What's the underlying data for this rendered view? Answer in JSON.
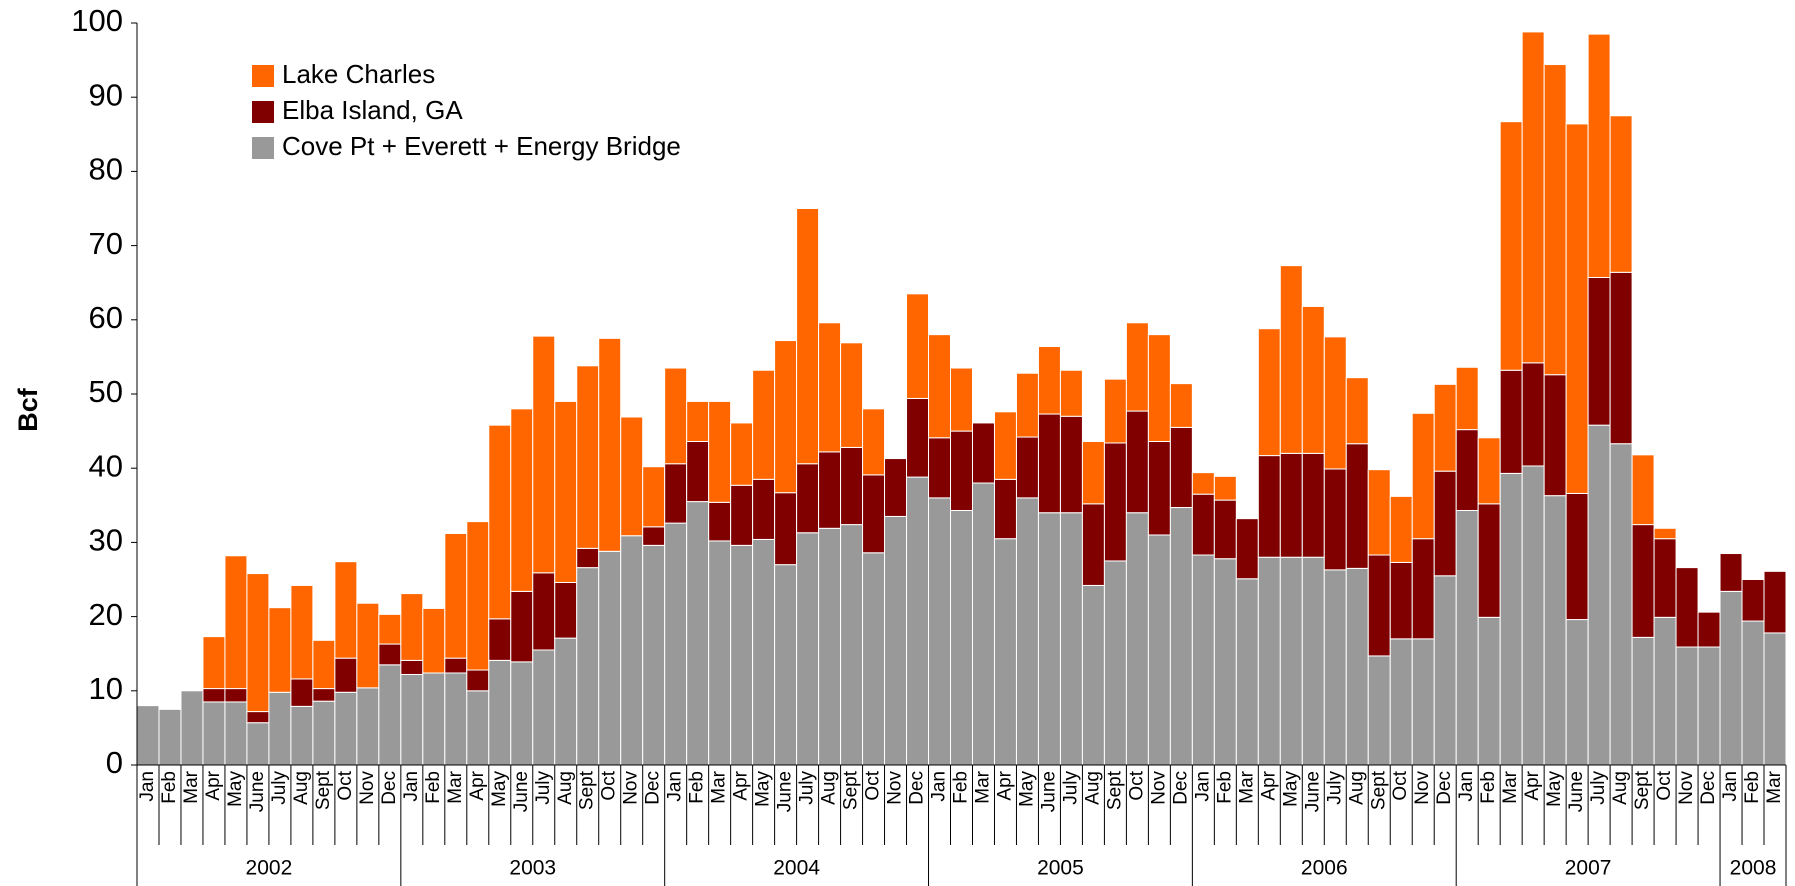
{
  "chart_data": {
    "type": "stacked_bar",
    "y_label": "Bcf",
    "categories": [
      "Jan",
      "Feb",
      "Mar",
      "Apr",
      "May",
      "June",
      "July",
      "Aug",
      "Sept",
      "Oct",
      "Nov",
      "Dec",
      "Jan",
      "Feb",
      "Mar",
      "Apr",
      "May",
      "June",
      "July",
      "Aug",
      "Sept",
      "Oct",
      "Nov",
      "Dec",
      "Jan",
      "Feb",
      "Mar",
      "Apr",
      "May",
      "June",
      "July",
      "Aug",
      "Sept",
      "Oct",
      "Nov",
      "Dec",
      "Jan",
      "Feb",
      "Mar",
      "Apr",
      "May",
      "June",
      "July",
      "Aug",
      "Sept",
      "Oct",
      "Nov",
      "Dec",
      "Jan",
      "Feb",
      "Mar",
      "Apr",
      "May",
      "June",
      "July",
      "Aug",
      "Sept",
      "Oct",
      "Nov",
      "Dec",
      "Jan",
      "Feb",
      "Mar",
      "Apr",
      "May",
      "June",
      "July",
      "Aug",
      "Sept",
      "Oct",
      "Nov",
      "Dec",
      "Jan",
      "Feb",
      "Mar"
    ],
    "years": [
      "2002",
      "2003",
      "2004",
      "2005",
      "2006",
      "2007",
      "2008"
    ],
    "series": [
      {
        "name": "Cove Pt + Everett + Energy Bridge",
        "color": "#999999",
        "values": [
          8,
          7.5,
          10,
          8.5,
          8.5,
          5.7,
          9.8,
          7.9,
          8.6,
          9.8,
          10.4,
          13.5,
          12.2,
          12.4,
          12.4,
          10,
          14.1,
          13.9,
          15.5,
          17.1,
          26.6,
          28.8,
          30.9,
          29.6,
          32.6,
          35.5,
          30.2,
          29.6,
          30.4,
          27,
          31.3,
          31.9,
          32.4,
          28.6,
          33.5,
          38.8,
          36,
          34.3,
          38,
          30.5,
          36,
          34,
          34,
          24.2,
          27.5,
          34,
          31,
          34.7,
          28.3,
          27.8,
          25.1,
          28,
          28,
          28,
          26.3,
          26.5,
          14.7,
          17,
          17,
          25.5,
          34.3,
          19.9,
          39.3,
          40.3,
          36.3,
          19.6,
          45.8,
          43.3,
          17.2,
          19.9,
          15.9,
          15.9,
          23.4,
          19.4,
          17.8
        ]
      },
      {
        "name": "Elba Island, GA",
        "color": "#800000",
        "values": [
          0,
          0,
          0,
          1.8,
          1.8,
          1.5,
          0,
          3.7,
          1.7,
          4.6,
          0,
          2.8,
          1.9,
          0,
          2,
          2.8,
          5.6,
          9.5,
          10.4,
          7.5,
          2.6,
          0,
          0,
          2.5,
          8,
          8.1,
          5.2,
          8.1,
          8.1,
          9.7,
          9.3,
          10.3,
          10.4,
          10.5,
          7.8,
          10.6,
          8.1,
          10.7,
          8.1,
          8,
          8.2,
          13.3,
          13,
          11,
          15.9,
          13.7,
          12.6,
          10.8,
          8.2,
          7.9,
          8.1,
          13.7,
          14,
          14,
          13.6,
          16.8,
          13.6,
          10.3,
          13.5,
          14.1,
          10.9,
          15.3,
          13.9,
          13.9,
          16.3,
          17,
          19.9,
          23.1,
          15.2,
          10.6,
          10.7,
          4.7,
          5.1,
          5.6,
          8.3
        ]
      },
      {
        "name": "Lake Charles",
        "color": "#ff6600",
        "values": [
          0,
          0,
          0,
          7,
          17.9,
          18.6,
          11.4,
          12.6,
          6.5,
          13,
          11.4,
          4,
          9,
          8.7,
          16.8,
          20,
          26.1,
          24.6,
          31.9,
          24.4,
          24.6,
          28.7,
          16,
          8.1,
          12.9,
          5.4,
          13.6,
          8.4,
          14.7,
          20.5,
          34.4,
          17.4,
          14.1,
          8.9,
          0,
          14.1,
          13.9,
          8.5,
          0,
          9.1,
          8.6,
          9.1,
          6.2,
          8.4,
          8.6,
          11.9,
          14.4,
          5.9,
          2.9,
          3.2,
          0,
          17.1,
          25.3,
          19.8,
          17.8,
          8.9,
          11.5,
          8.9,
          16.9,
          11.7,
          8.4,
          8.9,
          33.5,
          44.6,
          41.8,
          49.8,
          32.8,
          21.1,
          9.4,
          1.4,
          0,
          0,
          0,
          0,
          0
        ]
      }
    ],
    "legend_order": [
      2,
      1,
      0
    ],
    "ylim": [
      0,
      100
    ],
    "yticks": [
      0,
      10,
      20,
      30,
      40,
      50,
      60,
      70,
      80,
      90,
      100
    ]
  }
}
